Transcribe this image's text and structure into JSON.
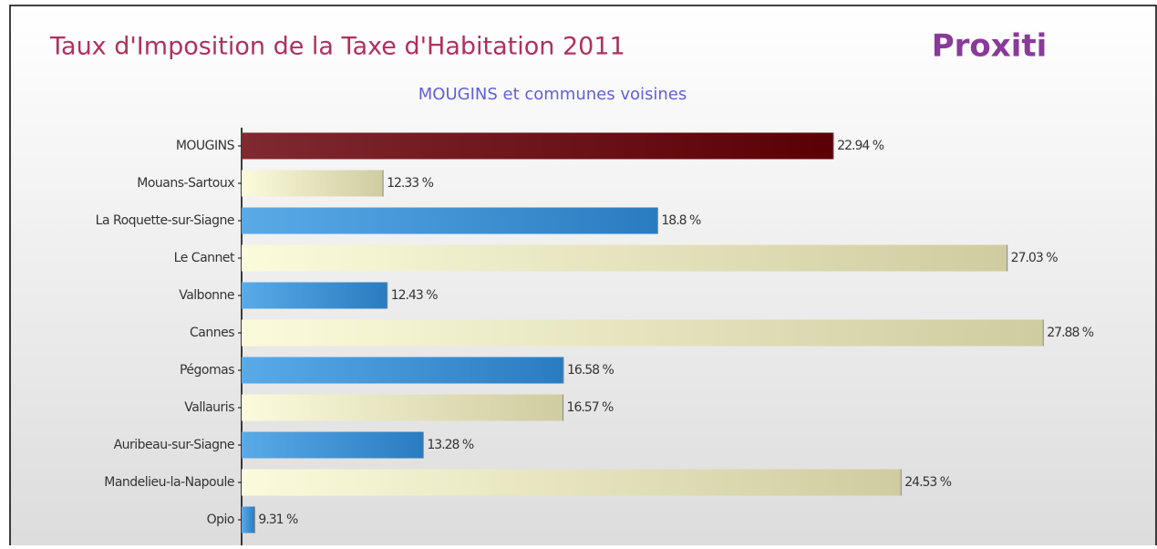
{
  "chart_data": {
    "type": "bar",
    "orientation": "horizontal",
    "title": "Taux d'Imposition de la Taxe d'Habitation 2011",
    "subtitle": "MOUGINS et communes voisines",
    "logo": "Proxiti",
    "categories": [
      "MOUGINS",
      "Mouans-Sartoux",
      "La Roquette-sur-Siagne",
      "Le Cannet",
      "Valbonne",
      "Cannes",
      "Pégomas",
      "Vallauris",
      "Auribeau-sur-Siagne",
      "Mandelieu-la-Napoule",
      "Opio"
    ],
    "values": [
      22.94,
      12.33,
      18.8,
      27.03,
      12.43,
      27.88,
      16.58,
      16.57,
      13.28,
      24.53,
      9.31
    ],
    "value_labels": [
      "22.94 %",
      "12.33 %",
      "18.8 %",
      "27.03 %",
      "12.43 %",
      "27.88 %",
      "16.58 %",
      "16.57 %",
      "13.28 %",
      "24.53 %",
      "9.31 %"
    ],
    "colors": [
      "#5a0005",
      "#cfcca0",
      "#2a7cc0",
      "#cfcca0",
      "#2a7cc0",
      "#cfcca0",
      "#2a7cc0",
      "#cfcca0",
      "#2a7cc0",
      "#cfcca0",
      "#2a7cc0"
    ],
    "xlim": [
      9,
      30
    ]
  }
}
